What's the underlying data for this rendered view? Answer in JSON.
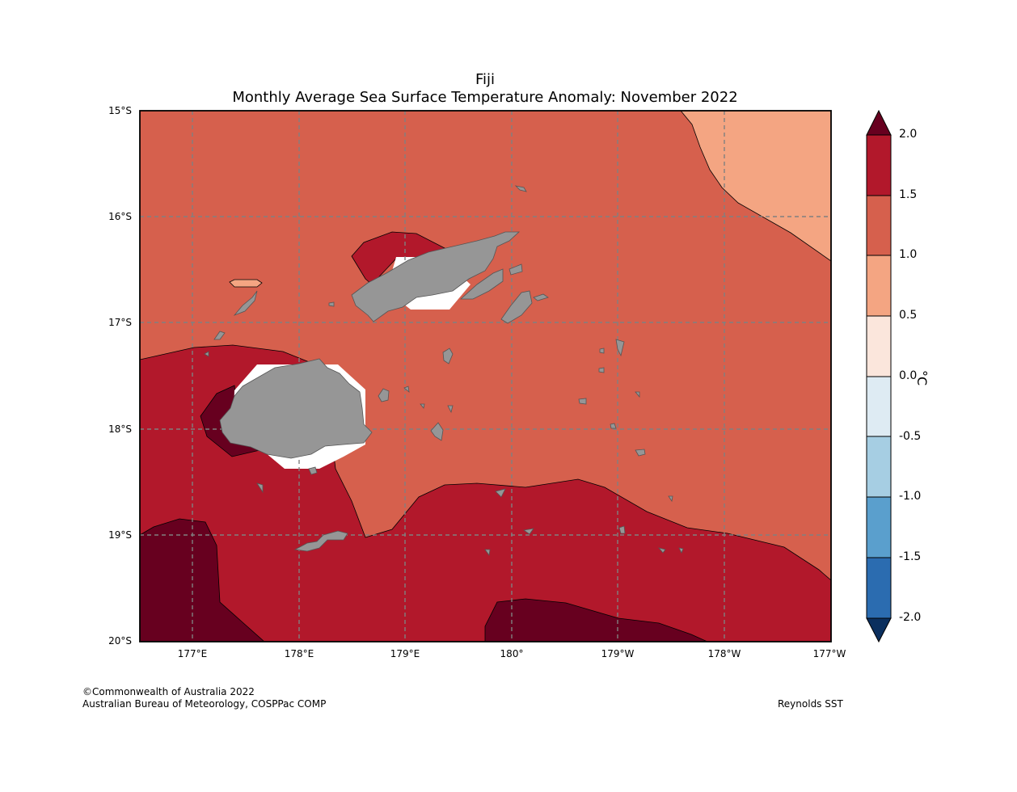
{
  "title": "Fiji",
  "subtitle": "Monthly Average Sea Surface Temperature Anomaly: November 2022",
  "lat_labels": [
    "15°S",
    "16°S",
    "17°S",
    "18°S",
    "19°S",
    "20°S"
  ],
  "lon_labels": [
    "177°E",
    "178°E",
    "179°E",
    "180°",
    "179°W",
    "178°W",
    "177°W"
  ],
  "colorbar": {
    "unit": "°C",
    "tick_labels": [
      "2.0",
      "1.5",
      "1.0",
      "0.5",
      "0.0",
      "-0.5",
      "-1.0",
      "-1.5",
      "-2.0"
    ],
    "colors": {
      "above_2": "#67001f",
      "1.5_2.0": "#b2182b",
      "1.0_1.5": "#d6604d",
      "0.5_1.0": "#f4a582",
      "0.0_0.5": "#fbe6dc",
      "-0.5_0.0": "#deebf3",
      "-1.0_-0.5": "#a6cee3",
      "-1.5_-1.0": "#5a9fcd",
      "-2.0_-1.5": "#2b6cb0",
      "below_-2": "#0b2f5e"
    }
  },
  "land_color": "#969696",
  "credits": {
    "line1": "©Commonwealth of Australia 2022",
    "line2": "Australian Bureau of Meteorology, COSPPac COMP",
    "source": "Reynolds SST"
  }
}
